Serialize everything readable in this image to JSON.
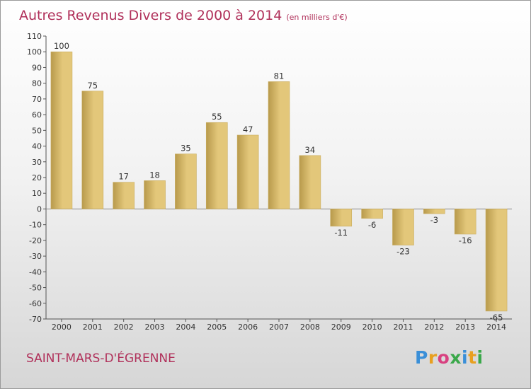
{
  "title": "Autres Revenus Divers de 2000 à 2014",
  "subtitle": "(en milliers d'€)",
  "commune": "SAINT-MARS-D'ÉGRENNE",
  "logo": {
    "letters": [
      "P",
      "r",
      "o",
      "x",
      "i",
      "t",
      "i"
    ],
    "colors": [
      "#3a8fd8",
      "#e8a020",
      "#d84080",
      "#3aa84a",
      "#3a8fd8",
      "#e8a020",
      "#3aa84a"
    ]
  },
  "chart_data": {
    "type": "bar",
    "title": "Autres Revenus Divers de 2000 à 2014",
    "subtitle": "(en milliers d'€)",
    "categories": [
      "2000",
      "2001",
      "2002",
      "2003",
      "2004",
      "2005",
      "2006",
      "2007",
      "2008",
      "2009",
      "2010",
      "2011",
      "2012",
      "2013",
      "2014"
    ],
    "values": [
      100,
      75,
      17,
      18,
      35,
      55,
      47,
      81,
      34,
      -11,
      -6,
      -23,
      -3,
      -16,
      -65
    ],
    "value_labels": [
      "100",
      "75",
      "17",
      "18",
      "35",
      "55",
      "47",
      "81",
      "34",
      "-11",
      "-6",
      "-23",
      "-3",
      "-16",
      "-65"
    ],
    "ylim": [
      -70,
      110
    ],
    "yticks": [
      110,
      100,
      90,
      80,
      70,
      60,
      50,
      40,
      30,
      20,
      10,
      0,
      -10,
      -20,
      -30,
      -40,
      -50,
      -60,
      -70
    ],
    "grid": false,
    "bar_color": "#e3c77a",
    "bar_color_dark": "#b89a4c"
  }
}
